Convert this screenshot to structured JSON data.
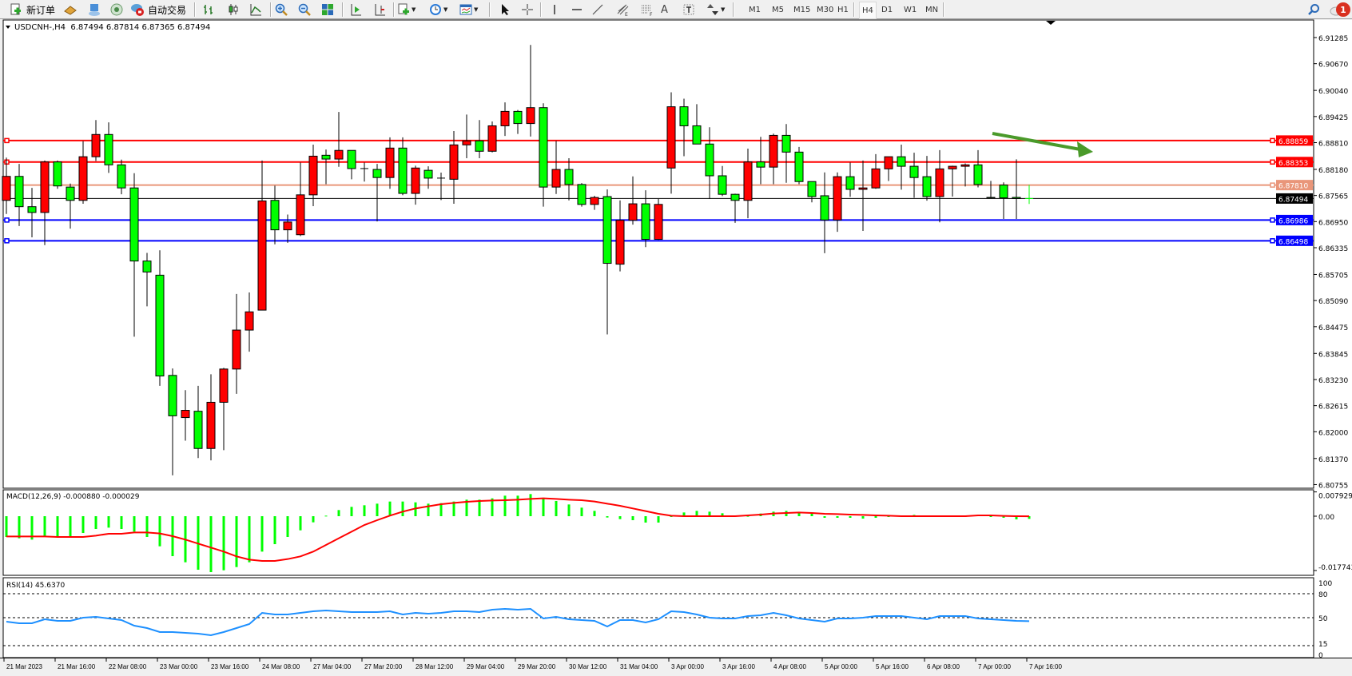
{
  "toolbar": {
    "new_order_label": "新订单",
    "auto_trading_label": "自动交易",
    "timeframes": [
      "M1",
      "M5",
      "M15",
      "M30",
      "H1",
      "H4",
      "D1",
      "W1",
      "MN"
    ],
    "active_timeframe": "H4",
    "notification_count": "1",
    "icons": [
      "new-order-icon",
      "folder-icon",
      "market-watch-icon",
      "signals-icon",
      "auto-trading-icon",
      "bar-chart-icon",
      "candlestick-icon",
      "line-chart-icon",
      "zoom-in-icon",
      "zoom-out-icon",
      "tile-windows-icon",
      "auto-scroll-icon",
      "chart-shift-icon",
      "new-chart-icon",
      "periods-clock-icon",
      "indicators-icon",
      "cursor-icon",
      "crosshair-icon",
      "vertical-line-icon",
      "horizontal-line-icon",
      "trendline-icon",
      "equidistant-channel-icon",
      "fibonacci-icon",
      "text-icon",
      "text-label-icon",
      "arrows-icon",
      "search-icon",
      "chat-icon"
    ]
  },
  "chart": {
    "header": "USDCNH-,H4  6.87494 6.87814 6.87365 6.87494",
    "macd_label": "MACD(12,26,9) -0.000880 -0.000029",
    "rsi_label": "RSI(14) 45.6370"
  },
  "colors": {
    "bull_candle": "#ff0000",
    "bear_candle": "#00ff00",
    "resistance_line": "#ff0000",
    "mid_line": "#e9967a",
    "support_line": "#0000ff",
    "bid_line": "#000000",
    "macd_histogram": "#00ff00",
    "macd_signal": "#ff0000",
    "rsi_line": "#1e90ff",
    "arrow": "#4a9a2a"
  },
  "chart_data": {
    "type": "candlestick",
    "symbol": "USDCNH-",
    "timeframe": "H4",
    "candle_format": [
      "open",
      "high",
      "low",
      "close"
    ],
    "candles": [
      [
        6.8745,
        6.88457,
        6.87131,
        6.88015
      ],
      [
        6.88015,
        6.88308,
        6.86845,
        6.87301
      ],
      [
        6.87301,
        6.87743,
        6.86579,
        6.87165
      ],
      [
        6.87165,
        6.88389,
        6.86396,
        6.88355
      ],
      [
        6.88355,
        6.88389,
        6.87722,
        6.8779
      ],
      [
        6.87763,
        6.87845,
        6.86784,
        6.8745
      ],
      [
        6.8745,
        6.88845,
        6.87369,
        6.88478
      ],
      [
        6.88478,
        6.89342,
        6.88376,
        6.89002
      ],
      [
        6.89002,
        6.89287,
        6.88097,
        6.88287
      ],
      [
        6.88287,
        6.8841,
        6.87593,
        6.87743
      ],
      [
        6.87743,
        6.8809,
        6.84239,
        6.86021
      ],
      [
        6.86021,
        6.86212,
        6.84953,
        6.85763
      ],
      [
        6.85688,
        6.86273,
        6.83082,
        6.83313
      ],
      [
        6.83327,
        6.8349,
        6.80973,
        6.82375
      ],
      [
        6.82334,
        6.8298,
        6.81789,
        6.82504
      ],
      [
        6.82483,
        6.83082,
        6.81381,
        6.81606
      ],
      [
        6.81606,
        6.83354,
        6.81327,
        6.82694
      ],
      [
        6.82694,
        6.83504,
        6.81565,
        6.83477
      ],
      [
        6.83477,
        6.85246,
        6.82892,
        6.84395
      ],
      [
        6.84395,
        6.8528,
        6.83885,
        6.84824
      ],
      [
        6.84865,
        6.88389,
        6.84865,
        6.87437
      ],
      [
        6.8745,
        6.87797,
        6.86416,
        6.86756
      ],
      [
        6.86756,
        6.87117,
        6.8645,
        6.8694
      ],
      [
        6.86641,
        6.88342,
        6.86607,
        6.8758
      ],
      [
        6.8758,
        6.88763,
        6.87314,
        6.88491
      ],
      [
        6.88512,
        6.88648,
        6.87831,
        6.88423
      ],
      [
        6.88423,
        6.89532,
        6.8824,
        6.88627
      ],
      [
        6.88627,
        6.88627,
        6.87947,
        6.88199
      ],
      [
        6.88199,
        6.88342,
        6.87893,
        6.88199
      ],
      [
        6.88178,
        6.88308,
        6.86954,
        6.87988
      ],
      [
        6.87988,
        6.88934,
        6.87722,
        6.88682
      ],
      [
        6.88682,
        6.88934,
        6.87573,
        6.87614
      ],
      [
        6.87614,
        6.88267,
        6.87348,
        6.88212
      ],
      [
        6.88158,
        6.88253,
        6.87722,
        6.87974
      ],
      [
        6.87974,
        6.88103,
        6.87457,
        6.87974
      ],
      [
        6.87947,
        6.89083,
        6.87369,
        6.88757
      ],
      [
        6.88757,
        6.89471,
        6.88444,
        6.88852
      ],
      [
        6.88852,
        6.89342,
        6.88444,
        6.88607
      ],
      [
        6.88607,
        6.89308,
        6.8858,
        6.89206
      ],
      [
        6.89206,
        6.89757,
        6.88968,
        6.89546
      ],
      [
        6.89546,
        6.8958,
        6.89015,
        6.8926
      ],
      [
        6.8926,
        6.91111,
        6.88954,
        6.89634
      ],
      [
        6.89634,
        6.89736,
        6.87301,
        6.87763
      ],
      [
        6.87763,
        6.88852,
        6.876,
        6.88178
      ],
      [
        6.88178,
        6.88444,
        6.8745,
        6.87824
      ],
      [
        6.87824,
        6.87858,
        6.87301,
        6.87355
      ],
      [
        6.87355,
        6.87559,
        6.87226,
        6.87518
      ],
      [
        6.87539,
        6.87709,
        6.84293,
        6.85967
      ],
      [
        6.85947,
        6.8745,
        6.85777,
        6.86981
      ],
      [
        6.86981,
        6.88015,
        6.86879,
        6.87369
      ],
      [
        6.87369,
        6.87688,
        6.86348,
        6.86532
      ],
      [
        6.86532,
        6.87484,
        6.86518,
        6.87355
      ],
      [
        6.88212,
        6.89995,
        6.87607,
        6.89655
      ],
      [
        6.89655,
        6.89845,
        6.88491,
        6.89206
      ],
      [
        6.89206,
        6.89716,
        6.88777,
        6.88777
      ],
      [
        6.88777,
        6.89172,
        6.87484,
        6.88029
      ],
      [
        6.88029,
        6.8826,
        6.87552,
        6.87593
      ],
      [
        6.87593,
        6.87607,
        6.8692,
        6.8745
      ],
      [
        6.8745,
        6.88668,
        6.87029,
        6.88355
      ],
      [
        6.88355,
        6.88947,
        6.87831,
        6.88233
      ],
      [
        6.88233,
        6.89022,
        6.87831,
        6.88981
      ],
      [
        6.88981,
        6.89247,
        6.87865,
        6.88587
      ],
      [
        6.88587,
        6.88709,
        6.87831,
        6.87893
      ],
      [
        6.87893,
        6.87893,
        6.87403,
        6.87539
      ],
      [
        6.87559,
        6.8811,
        6.86205,
        6.86988
      ],
      [
        6.86988,
        6.8811,
        6.86709,
        6.88008
      ],
      [
        6.88008,
        6.88342,
        6.87532,
        6.87709
      ],
      [
        6.87709,
        6.88389,
        6.86729,
        6.87743
      ],
      [
        6.87743,
        6.88539,
        6.87722,
        6.88192
      ],
      [
        6.88192,
        6.88478,
        6.87906,
        6.88478
      ],
      [
        6.88478,
        6.88763,
        6.87702,
        6.88253
      ],
      [
        6.88253,
        6.88573,
        6.87512,
        6.87988
      ],
      [
        6.88008,
        6.88498,
        6.87443,
        6.87539
      ],
      [
        6.87539,
        6.88634,
        6.86933,
        6.88192
      ],
      [
        6.88192,
        6.88267,
        6.87539,
        6.88253
      ],
      [
        6.88253,
        6.88321,
        6.87777,
        6.88287
      ],
      [
        6.88287,
        6.88634,
        6.87756,
        6.87824
      ],
      [
        6.8752,
        6.8791,
        6.87496,
        6.875
      ],
      [
        6.8781,
        6.87873,
        6.87012,
        6.87508
      ],
      [
        6.8752,
        6.88418,
        6.87012,
        6.87494
      ],
      [
        6.87494,
        6.87814,
        6.87365,
        6.87494
      ]
    ],
    "x_labels": [
      "21 Mar 2023",
      "21 Mar 16:00",
      "22 Mar 08:00",
      "23 Mar 00:00",
      "23 Mar 16:00",
      "24 Mar 08:00",
      "27 Mar 04:00",
      "27 Mar 20:00",
      "28 Mar 12:00",
      "29 Mar 04:00",
      "29 Mar 20:00",
      "30 Mar 12:00",
      "31 Mar 04:00",
      "3 Apr 00:00",
      "3 Apr 16:00",
      "4 Apr 08:00",
      "5 Apr 00:00",
      "5 Apr 16:00",
      "6 Apr 08:00",
      "7 Apr 00:00",
      "7 Apr 16:00"
    ],
    "x_label_every_n_bars": 4,
    "y_ticks": [
      "6.91285",
      "6.90670",
      "6.90040",
      "6.89425",
      "6.88810",
      "6.88180",
      "6.87565",
      "6.86950",
      "6.86335",
      "6.85705",
      "6.85090",
      "6.84475",
      "6.83845",
      "6.83230",
      "6.82615",
      "6.82000",
      "6.81370",
      "6.80755"
    ],
    "ylim": [
      6.80755,
      6.91285
    ],
    "grid": false,
    "horizontal_lines": [
      {
        "price": "6.88859",
        "style": "resistance"
      },
      {
        "price": "6.88353",
        "style": "resistance"
      },
      {
        "price": "6.87810",
        "style": "mid"
      },
      {
        "price": "6.87494",
        "style": "bid"
      },
      {
        "price": "6.86986",
        "style": "support"
      },
      {
        "price": "6.86498",
        "style": "support"
      }
    ],
    "trend_arrow": {
      "from": {
        "bar": 78,
        "price": 6.8945
      },
      "to": {
        "bar": 86,
        "price": 6.8901
      },
      "direction": "down-right"
    },
    "macd": {
      "params": "12,26,9",
      "ylim": [
        -0.017743,
        0.007929
      ],
      "y_ticks": [
        "0.007929",
        "0.00",
        "-0.017743"
      ],
      "main": [
        -0.006786,
        -0.007221,
        -0.007656,
        -0.006786,
        -0.006786,
        -0.006786,
        -0.005481,
        -0.004176,
        -0.003741,
        -0.004176,
        -0.005046,
        -0.006786,
        -0.009831,
        -0.01305,
        -0.015051,
        -0.017487,
        -0.01827,
        -0.017661,
        -0.016617,
        -0.015051,
        -0.011571,
        -0.009135,
        -0.006786,
        -0.004611,
        -0.002001,
        0.000174,
        0.002001,
        0.003045,
        0.003567,
        0.004089,
        0.004785,
        0.004785,
        0.004524,
        0.004089,
        0.004263,
        0.004785,
        0.005394,
        0.005394,
        0.005829,
        0.006699,
        0.006699,
        0.007221,
        0.005829,
        0.004959,
        0.003828,
        0.002784,
        0.00174,
        -0.000435,
        -0.000957,
        -0.001305,
        -0.002088,
        -0.002088,
        0.0,
        0.001218,
        0.00174,
        0.001479,
        0.000957,
        0.000261,
        8.7e-05,
        0.00087,
        0.001479,
        0.00174,
        0.001044,
        0.000783,
        -0.000522,
        -0.000522,
        -0.000522,
        -0.000783,
        -0.000522,
        0.0,
        0.000261,
        0.000435,
        0.0,
        0.0,
        0.0,
        0.0,
        0.000435,
        -0.000261,
        -0.000522,
        -0.001044,
        -0.00088
      ],
      "signal": [
        -0.006612,
        -0.006612,
        -0.006612,
        -0.006612,
        -0.006786,
        -0.006786,
        -0.006786,
        -0.006351,
        -0.005742,
        -0.005742,
        -0.005307,
        -0.005307,
        -0.005655,
        -0.006525,
        -0.007656,
        -0.008961,
        -0.010266,
        -0.011571,
        -0.013137,
        -0.014181,
        -0.014616,
        -0.014616,
        -0.014007,
        -0.013137,
        -0.011571,
        -0.009396,
        -0.007221,
        -0.005046,
        -0.002871,
        -0.001305,
        0.000174,
        0.001479,
        0.002523,
        0.003219,
        0.003915,
        0.00435,
        0.004698,
        0.004959,
        0.005133,
        0.00522,
        0.005394,
        0.005655,
        0.005829,
        0.005655,
        0.005394,
        0.00522,
        0.004785,
        0.004089,
        0.003393,
        0.002523,
        0.001653,
        0.000783,
        0.000174,
        0.0,
        0.0,
        0.0,
        0.0,
        0.0,
        0.000261,
        0.000522,
        0.00087,
        0.001044,
        0.001218,
        0.001044,
        0.000783,
        0.000696,
        0.000522,
        0.000435,
        0.000261,
        0.000174,
        0.0,
        0.0,
        0.0,
        0.0,
        0.0,
        0.0,
        0.000261,
        0.000261,
        8.7e-05,
        0.0,
        -2.9e-05
      ]
    },
    "rsi": {
      "period": 14,
      "ylim": [
        0,
        100
      ],
      "y_ticks": [
        "100",
        "80",
        "50",
        "15",
        "0"
      ],
      "levels": [
        80,
        50,
        15
      ],
      "values": [
        45,
        43,
        43,
        48,
        46,
        46,
        50,
        51,
        49,
        47,
        40,
        37,
        32,
        32,
        31,
        30,
        28,
        32,
        37,
        42,
        56,
        54,
        54,
        56,
        58,
        59,
        58,
        57,
        57,
        57,
        58,
        54,
        56,
        55,
        56,
        58,
        58,
        57,
        60,
        61,
        60,
        61,
        49,
        51,
        48,
        47,
        46,
        39,
        47,
        47,
        44,
        48,
        58,
        57,
        54,
        50,
        49,
        49,
        52,
        53,
        56,
        53,
        49,
        47,
        45,
        49,
        49,
        50,
        52,
        52,
        52,
        50,
        48,
        52,
        52,
        52,
        49,
        48,
        47,
        46,
        45.637
      ]
    }
  }
}
